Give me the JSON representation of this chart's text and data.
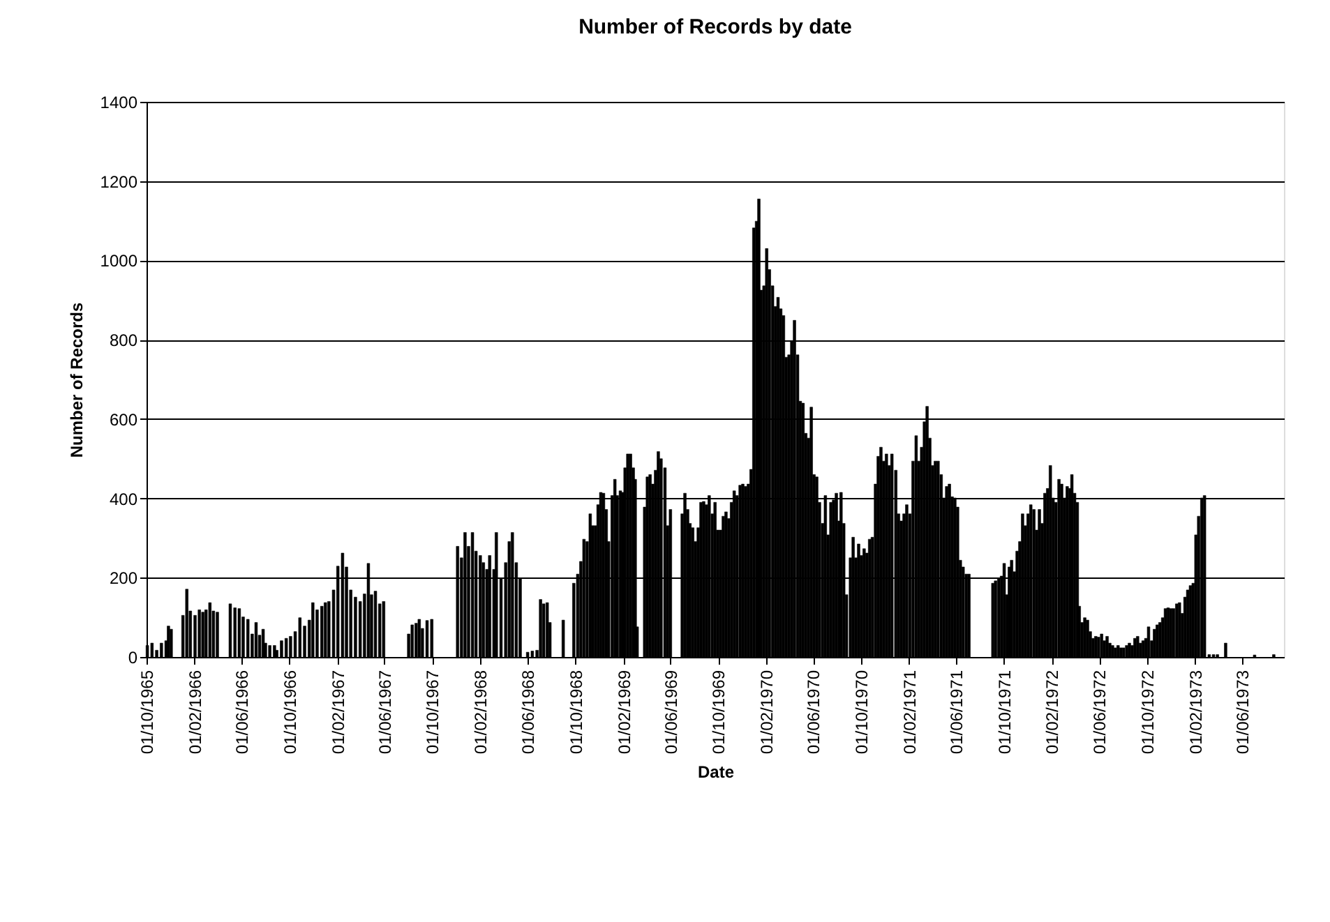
{
  "chart_data": {
    "type": "bar",
    "title": "Number of Records by date",
    "xlabel": "Date",
    "ylabel": "Number of Records",
    "x": [
      "1965-10-03",
      "1965-10-15",
      "1965-10-27",
      "1965-11-08",
      "1965-11-20",
      "1965-11-26",
      "1965-12-03",
      "1966-01-02",
      "1966-01-12",
      "1966-01-21",
      "1966-02-02",
      "1966-02-13",
      "1966-02-22",
      "1966-03-02",
      "1966-03-12",
      "1966-03-21",
      "1966-03-31",
      "1966-05-03",
      "1966-05-15",
      "1966-05-26",
      "1966-06-05",
      "1966-06-17",
      "1966-06-28",
      "1966-07-08",
      "1966-07-17",
      "1966-07-26",
      "1966-08-01",
      "1966-08-12",
      "1966-08-24",
      "1966-08-30",
      "1966-09-11",
      "1966-09-23",
      "1966-10-04",
      "1966-10-16",
      "1966-10-28",
      "1966-11-09",
      "1966-11-21",
      "1966-11-30",
      "1966-12-11",
      "1966-12-23",
      "1967-01-01",
      "1967-01-10",
      "1967-01-22",
      "1967-02-02",
      "1967-02-14",
      "1967-02-24",
      "1967-03-07",
      "1967-03-19",
      "1967-03-31",
      "1967-04-11",
      "1967-04-21",
      "1967-04-29",
      "1967-05-09",
      "1967-05-20",
      "1967-05-30",
      "1967-08-02",
      "1967-08-11",
      "1967-08-21",
      "1967-08-29",
      "1967-09-06",
      "1967-09-18",
      "1967-09-30",
      "1967-12-05",
      "1967-12-15",
      "1967-12-24",
      "1968-01-02",
      "1968-01-12",
      "1968-01-21",
      "1968-02-01",
      "1968-02-09",
      "1968-02-18",
      "1968-02-25",
      "1968-03-07",
      "1968-03-13",
      "1968-03-25",
      "1968-04-06",
      "1968-04-15",
      "1968-04-23",
      "1968-05-03",
      "1968-05-13",
      "1968-06-01",
      "1968-06-13",
      "1968-06-25",
      "1968-07-04",
      "1968-07-12",
      "1968-07-21",
      "1968-07-28",
      "1968-08-31",
      "1968-09-27",
      "1968-10-07",
      "1968-10-15",
      "1968-10-23",
      "1968-10-31",
      "1968-11-08",
      "1968-11-14",
      "1968-11-21",
      "1968-11-28",
      "1968-12-05",
      "1968-12-12",
      "1968-12-19",
      "1968-12-25",
      "1969-01-03",
      "1969-01-10",
      "1969-01-16",
      "1969-01-24",
      "1969-01-30",
      "1969-02-05",
      "1969-02-12",
      "1969-02-19",
      "1969-02-26",
      "1969-03-03",
      "1969-03-08",
      "1969-03-27",
      "1969-04-03",
      "1969-04-10",
      "1969-04-17",
      "1969-04-24",
      "1969-05-01",
      "1969-05-08",
      "1969-05-18",
      "1969-05-25",
      "1969-06-01",
      "1969-07-01",
      "1969-07-08",
      "1969-07-15",
      "1969-07-21",
      "1969-07-28",
      "1969-08-04",
      "1969-08-11",
      "1969-08-18",
      "1969-08-25",
      "1969-09-01",
      "1969-09-08",
      "1969-09-16",
      "1969-09-23",
      "1969-09-30",
      "1969-10-07",
      "1969-10-14",
      "1969-10-21",
      "1969-10-28",
      "1969-11-04",
      "1969-11-11",
      "1969-11-18",
      "1969-11-26",
      "1969-12-03",
      "1969-12-10",
      "1969-12-17",
      "1969-12-24",
      "1969-12-31",
      "1970-01-07",
      "1970-01-13",
      "1970-01-19",
      "1970-01-26",
      "1970-02-02",
      "1970-02-09",
      "1970-02-17",
      "1970-02-24",
      "1970-03-03",
      "1970-03-10",
      "1970-03-17",
      "1970-03-24",
      "1970-03-31",
      "1970-04-07",
      "1970-04-14",
      "1970-04-22",
      "1970-04-29",
      "1970-05-06",
      "1970-05-13",
      "1970-05-20",
      "1970-05-27",
      "1970-06-03",
      "1970-06-10",
      "1970-06-17",
      "1970-06-25",
      "1970-07-02",
      "1970-07-09",
      "1970-07-16",
      "1970-07-23",
      "1970-07-30",
      "1970-08-06",
      "1970-08-11",
      "1970-08-18",
      "1970-08-25",
      "1970-09-04",
      "1970-09-11",
      "1970-09-18",
      "1970-09-25",
      "1970-10-02",
      "1970-10-09",
      "1970-10-16",
      "1970-10-23",
      "1970-10-30",
      "1970-11-07",
      "1970-11-14",
      "1970-11-21",
      "1970-11-28",
      "1970-12-05",
      "1970-12-12",
      "1970-12-19",
      "1970-12-29",
      "1971-01-05",
      "1971-01-12",
      "1971-01-19",
      "1971-01-26",
      "1971-02-03",
      "1971-02-11",
      "1971-02-19",
      "1971-02-26",
      "1971-03-05",
      "1971-03-12",
      "1971-03-19",
      "1971-03-26",
      "1971-04-02",
      "1971-04-09",
      "1971-04-16",
      "1971-04-24",
      "1971-05-01",
      "1971-05-08",
      "1971-05-15",
      "1971-05-22",
      "1971-05-29",
      "1971-06-05",
      "1971-06-12",
      "1971-06-19",
      "1971-06-27",
      "1971-07-04",
      "1971-09-03",
      "1971-09-10",
      "1971-09-18",
      "1971-09-25",
      "1971-10-02",
      "1971-10-09",
      "1971-10-15",
      "1971-10-21",
      "1971-10-28",
      "1971-11-04",
      "1971-11-11",
      "1971-11-18",
      "1971-11-25",
      "1971-12-02",
      "1971-12-09",
      "1971-12-17",
      "1971-12-24",
      "1971-12-31",
      "1972-01-07",
      "1972-01-14",
      "1972-01-21",
      "1972-01-28",
      "1972-02-04",
      "1972-02-11",
      "1972-02-19",
      "1972-02-26",
      "1972-03-04",
      "1972-03-11",
      "1972-03-18",
      "1972-03-23",
      "1972-03-30",
      "1972-04-06",
      "1972-04-11",
      "1972-04-18",
      "1972-04-25",
      "1972-05-02",
      "1972-05-09",
      "1972-05-16",
      "1972-05-23",
      "1972-05-30",
      "1972-06-07",
      "1972-06-14",
      "1972-06-21",
      "1972-06-28",
      "1972-07-05",
      "1972-07-12",
      "1972-07-19",
      "1972-07-26",
      "1972-08-02",
      "1972-08-10",
      "1972-08-17",
      "1972-08-24",
      "1972-08-31",
      "1972-09-07",
      "1972-09-14",
      "1972-09-21",
      "1972-09-28",
      "1972-10-05",
      "1972-10-13",
      "1972-10-20",
      "1972-10-27",
      "1972-11-03",
      "1972-11-10",
      "1972-11-17",
      "1972-11-24",
      "1972-12-01",
      "1972-12-08",
      "1972-12-16",
      "1972-12-23",
      "1972-12-30",
      "1973-01-06",
      "1973-01-13",
      "1973-01-20",
      "1973-01-27",
      "1973-02-03",
      "1973-02-10",
      "1973-02-18",
      "1973-02-25",
      "1973-03-09",
      "1973-03-20",
      "1973-03-30",
      "1973-04-20",
      "1973-07-03",
      "1973-08-21"
    ],
    "values": [
      29,
      35,
      17,
      35,
      41,
      78,
      70,
      105,
      171,
      116,
      105,
      119,
      113,
      119,
      137,
      116,
      113,
      134,
      124,
      122,
      101,
      95,
      58,
      87,
      55,
      70,
      35,
      29,
      29,
      17,
      41,
      47,
      52,
      64,
      99,
      78,
      93,
      137,
      119,
      128,
      137,
      140,
      169,
      229,
      262,
      227,
      169,
      151,
      140,
      159,
      236,
      157,
      166,
      134,
      140,
      58,
      81,
      85,
      95,
      72,
      92,
      95,
      279,
      250,
      314,
      279,
      314,
      267,
      256,
      238,
      221,
      256,
      221,
      314,
      198,
      238,
      291,
      314,
      238,
      198,
      12,
      15,
      17,
      145,
      134,
      137,
      87,
      93,
      186,
      209,
      241,
      297,
      291,
      361,
      331,
      331,
      384,
      415,
      413,
      372,
      291,
      407,
      448,
      407,
      419,
      415,
      477,
      512,
      512,
      477,
      448,
      76,
      378,
      454,
      460,
      436,
      471,
      518,
      500,
      477,
      331,
      372,
      361,
      413,
      372,
      337,
      326,
      291,
      326,
      390,
      392,
      384,
      407,
      361,
      390,
      320,
      320,
      355,
      366,
      349,
      390,
      419,
      407,
      433,
      436,
      430,
      436,
      473,
      1082,
      1099,
      1155,
      925,
      936,
      1030,
      977,
      936,
      884,
      907,
      878,
      861,
      756,
      762,
      797,
      849,
      762,
      645,
      640,
      564,
      552,
      630,
      460,
      454,
      390,
      337,
      407,
      308,
      390,
      396,
      413,
      343,
      415,
      337,
      157,
      250,
      302,
      250,
      285,
      256,
      273,
      262,
      297,
      302,
      436,
      506,
      529,
      494,
      512,
      483,
      512,
      471,
      361,
      343,
      361,
      384,
      361,
      494,
      558,
      494,
      529,
      593,
      632,
      552,
      483,
      494,
      494,
      460,
      401,
      430,
      436,
      404,
      401,
      378,
      244,
      227,
      209,
      209,
      186,
      192,
      198,
      204,
      236,
      157,
      227,
      244,
      215,
      267,
      291,
      361,
      331,
      361,
      384,
      372,
      320,
      372,
      337,
      413,
      425,
      483,
      401,
      390,
      448,
      436,
      401,
      430,
      425,
      460,
      413,
      390,
      128,
      87,
      99,
      93,
      64,
      47,
      52,
      50,
      58,
      41,
      52,
      35,
      29,
      23,
      29,
      23,
      23,
      29,
      35,
      29,
      47,
      52,
      35,
      41,
      47,
      76,
      41,
      70,
      81,
      87,
      99,
      122,
      124,
      122,
      122,
      134,
      137,
      110,
      151,
      169,
      180,
      186,
      308,
      355,
      401,
      407,
      6,
      6,
      6,
      35,
      5,
      6
    ],
    "color": "#000000",
    "xlim": [
      "1965-10-01",
      "1973-09-16"
    ],
    "xticks": [
      {
        "value": "1965-10-01",
        "label": "01/10/1965"
      },
      {
        "value": "1966-02-01",
        "label": "01/02/1966"
      },
      {
        "value": "1966-06-01",
        "label": "01/06/1966"
      },
      {
        "value": "1966-10-01",
        "label": "01/10/1966"
      },
      {
        "value": "1967-02-01",
        "label": "01/02/1967"
      },
      {
        "value": "1967-06-01",
        "label": "01/06/1967"
      },
      {
        "value": "1967-10-01",
        "label": "01/10/1967"
      },
      {
        "value": "1968-02-01",
        "label": "01/02/1968"
      },
      {
        "value": "1968-06-01",
        "label": "01/06/1968"
      },
      {
        "value": "1968-10-01",
        "label": "01/10/1968"
      },
      {
        "value": "1969-02-01",
        "label": "01/02/1969"
      },
      {
        "value": "1969-06-01",
        "label": "01/06/1969"
      },
      {
        "value": "1969-10-01",
        "label": "01/10/1969"
      },
      {
        "value": "1970-02-01",
        "label": "01/02/1970"
      },
      {
        "value": "1970-06-01",
        "label": "01/06/1970"
      },
      {
        "value": "1970-10-01",
        "label": "01/10/1970"
      },
      {
        "value": "1971-02-01",
        "label": "01/02/1971"
      },
      {
        "value": "1971-06-01",
        "label": "01/06/1971"
      },
      {
        "value": "1971-10-01",
        "label": "01/10/1971"
      },
      {
        "value": "1972-02-01",
        "label": "01/02/1972"
      },
      {
        "value": "1972-06-01",
        "label": "01/06/1972"
      },
      {
        "value": "1972-10-01",
        "label": "01/10/1972"
      },
      {
        "value": "1973-02-01",
        "label": "01/02/1973"
      },
      {
        "value": "1973-06-01",
        "label": "01/06/1973"
      }
    ],
    "ylim": [
      0,
      1400
    ],
    "yticks": [
      0,
      200,
      400,
      600,
      800,
      1000,
      1200,
      1400
    ],
    "grid": "y"
  }
}
